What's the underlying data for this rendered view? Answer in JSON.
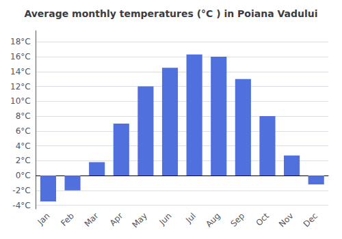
{
  "chart_data": {
    "type": "bar",
    "title": "Average monthly temperatures (°C ) in Poiana Vadului",
    "categories": [
      "Jan",
      "Feb",
      "Mar",
      "Apr",
      "May",
      "Jun",
      "Jul",
      "Aug",
      "Sep",
      "Oct",
      "Nov",
      "Dec"
    ],
    "values": [
      -3.5,
      -2.0,
      1.8,
      7.0,
      12.0,
      14.5,
      16.3,
      16.0,
      13.0,
      8.0,
      2.7,
      -1.2
    ],
    "ylim": [
      -4.5,
      19.5
    ],
    "yticks": [
      {
        "value": -4,
        "label": "-4°C"
      },
      {
        "value": -2,
        "label": "-2°C"
      },
      {
        "value": 0,
        "label": "0°C"
      },
      {
        "value": 2,
        "label": "2°C"
      },
      {
        "value": 4,
        "label": "4°C"
      },
      {
        "value": 6,
        "label": "6°C"
      },
      {
        "value": 8,
        "label": "8°C"
      },
      {
        "value": 10,
        "label": "10°C"
      },
      {
        "value": 12,
        "label": "12°C"
      },
      {
        "value": 14,
        "label": "14°C"
      },
      {
        "value": 16,
        "label": "16°C"
      },
      {
        "value": 18,
        "label": "18°C"
      }
    ],
    "grid": true
  }
}
